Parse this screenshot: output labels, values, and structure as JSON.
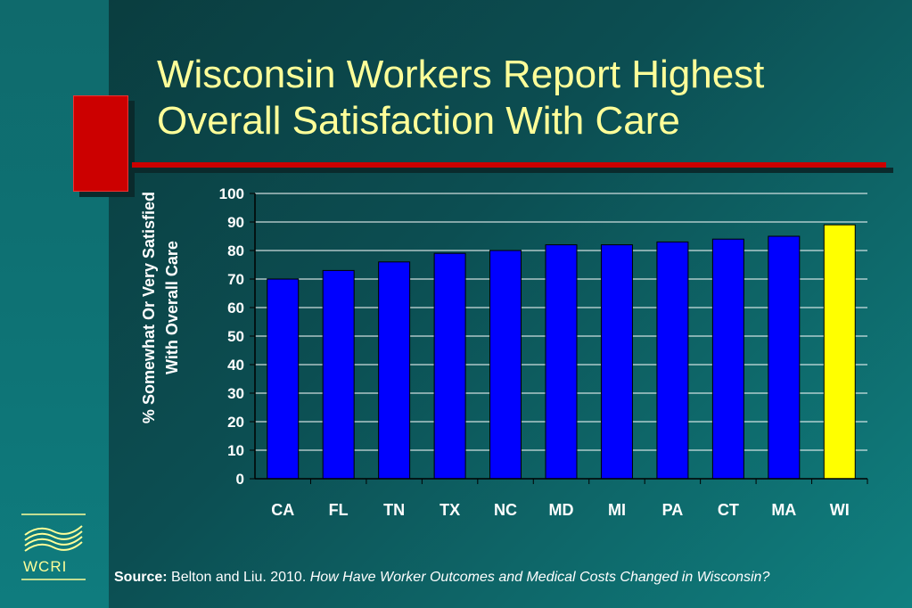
{
  "slide": {
    "title_line1": "Wisconsin Workers Report Highest",
    "title_line2": "Overall Satisfaction With Care",
    "source_label": "Source:",
    "source_text": "Belton and Liu. 2010.",
    "source_italic": "How Have Worker Outcomes and Medical Costs Changed in Wisconsin?",
    "logo_text": "WCRI"
  },
  "colors": {
    "bar": "#0000ff",
    "highlight": "#ffff00",
    "title": "#ffff99",
    "accent_red": "#cc0000"
  },
  "chart_data": {
    "type": "bar",
    "title": "Wisconsin Workers Report Highest Overall Satisfaction With Care",
    "ylabel_line1": "% Somewhat Or Very Satisfied",
    "ylabel_line2": "With Overall Care",
    "xlabel": "",
    "categories": [
      "CA",
      "FL",
      "TN",
      "TX",
      "NC",
      "MD",
      "MI",
      "PA",
      "CT",
      "MA",
      "WI"
    ],
    "values": [
      70,
      73,
      76,
      79,
      80,
      82,
      82,
      83,
      84,
      85,
      89
    ],
    "highlight_category": "WI",
    "ylim": [
      0,
      100
    ],
    "yticks": [
      0,
      10,
      20,
      30,
      40,
      50,
      60,
      70,
      80,
      90,
      100
    ],
    "grid": true,
    "legend": "none"
  }
}
